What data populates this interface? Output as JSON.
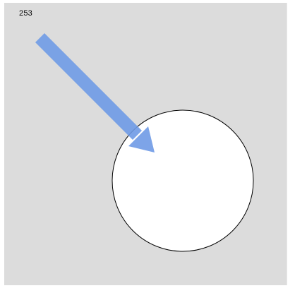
{
  "hud": {
    "score": "253"
  },
  "colors": {
    "background": "#dcdcdc",
    "target_fill": "#ffffff",
    "target_stroke": "#000000",
    "arrow": "#6f9be6"
  },
  "elements": {
    "arrow_icon": "arrow-icon",
    "target": "target-circle"
  }
}
